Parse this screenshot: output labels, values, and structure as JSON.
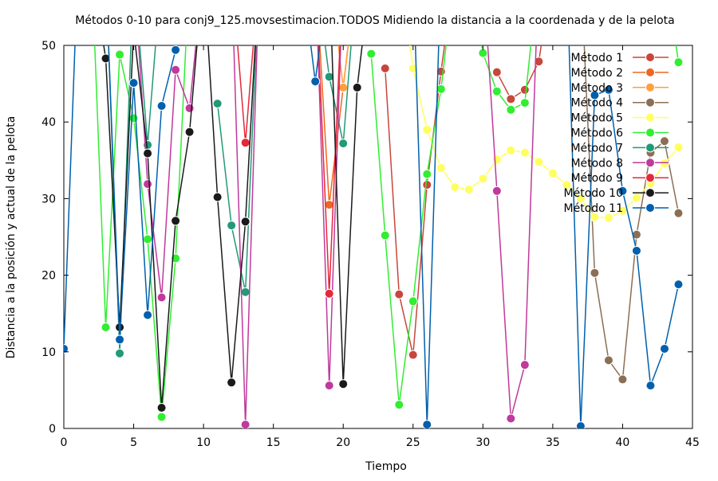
{
  "chart_data": {
    "type": "line",
    "title": "Métodos 0-10 para conj9_125.movsestimacion.TODOS Midiendo la distancia a la coordenada y de la pelota",
    "x_label": "Tiempo",
    "y_label": "Distancia a la posición y actual de la pelota",
    "xlim": [
      0,
      45
    ],
    "ylim": [
      0,
      50
    ],
    "xticks": [
      0,
      5,
      10,
      15,
      20,
      25,
      30,
      35,
      40,
      45
    ],
    "yticks": [
      0,
      10,
      20,
      30,
      40,
      50
    ],
    "legend": "top-right",
    "series": [
      {
        "name": "Método 1",
        "color": "#c8463c",
        "x": [
          23,
          24,
          25,
          26,
          27,
          28,
          29,
          31,
          32,
          33,
          34,
          35
        ],
        "values": [
          47,
          17.5,
          9.6,
          31.8,
          46.6,
          60,
          null,
          46.5,
          43,
          44.2,
          47.9,
          60
        ]
      },
      {
        "name": "Método 2",
        "color": "#ee6622",
        "x": [
          18,
          19,
          20,
          21
        ],
        "values": [
          60,
          29.2,
          44.5,
          60
        ]
      },
      {
        "name": "Método 3",
        "color": "#ff9f3f",
        "x": [
          19,
          20,
          21
        ],
        "values": [
          60,
          44.5,
          60
        ]
      },
      {
        "name": "Método 4",
        "color": "#8b6e54",
        "x": [
          37,
          38,
          39,
          40,
          41,
          42,
          43,
          44
        ],
        "values": [
          60,
          20.3,
          8.9,
          6.4,
          25.3,
          36,
          37.5,
          28.1
        ]
      },
      {
        "name": "Método 5",
        "color": "#ffff60",
        "x": [
          24,
          25,
          26,
          27,
          28,
          29,
          30,
          31,
          32,
          33,
          34,
          35,
          36,
          37,
          38,
          39,
          40,
          41,
          42,
          43,
          44
        ],
        "values": [
          60,
          47,
          39,
          34,
          31.5,
          31.2,
          32.6,
          35.1,
          36.3,
          36,
          34.8,
          33.3,
          31.8,
          30,
          27.6,
          27.5,
          28.4,
          30.1,
          32,
          34.6,
          36.7
        ]
      },
      {
        "name": "Método 6",
        "color": "#30ee30",
        "x": [
          2,
          3,
          4,
          5,
          6,
          7,
          8,
          9,
          21,
          22,
          23,
          24,
          25,
          26,
          27,
          28,
          29,
          30,
          31,
          32,
          33,
          34,
          43,
          44
        ],
        "values": [
          60,
          13.2,
          48.8,
          40.5,
          24.7,
          1.5,
          22.2,
          60,
          null,
          48.9,
          25.2,
          3.1,
          16.6,
          33.2,
          44.3,
          60,
          60,
          49,
          44,
          41.6,
          42.5,
          60,
          60,
          47.8
        ]
      },
      {
        "name": "Método 7",
        "color": "#229977",
        "x": [
          3,
          4,
          5,
          6,
          7,
          10,
          11,
          12,
          13,
          14,
          18,
          19,
          20,
          21
        ],
        "values": [
          60,
          9.8,
          60,
          37,
          60,
          null,
          42.4,
          26.5,
          17.8,
          60,
          60,
          45.9,
          37.2,
          60
        ]
      },
      {
        "name": "Método 8",
        "color": "#c0399c",
        "x": [
          5,
          6,
          7,
          8,
          9,
          10,
          12,
          13,
          14,
          18,
          19,
          20,
          30,
          31,
          32,
          33,
          34
        ],
        "values": [
          60,
          31.9,
          17.1,
          46.8,
          41.8,
          60,
          60,
          0.5,
          60,
          60,
          5.6,
          60,
          60,
          31,
          1.3,
          8.3,
          60
        ]
      },
      {
        "name": "Método 9",
        "color": "#e5283a",
        "x": [
          12,
          13,
          14,
          18,
          19,
          20
        ],
        "values": [
          60,
          37.3,
          60,
          60,
          17.6,
          60
        ]
      },
      {
        "name": "Método 10",
        "color": "#1a1a1a",
        "x": [
          2,
          3,
          4,
          5,
          6,
          7,
          8,
          9,
          10,
          11,
          12,
          13,
          14,
          19,
          20,
          21,
          22
        ],
        "values": [
          60,
          48.3,
          13.2,
          52,
          35.9,
          2.7,
          27.1,
          38.7,
          60,
          30.2,
          6,
          27,
          60,
          60,
          5.8,
          44.5,
          60
        ]
      },
      {
        "name": "Método 11",
        "color": "#0060ad",
        "x": [
          0,
          1,
          3,
          4,
          5,
          6,
          7,
          8,
          9,
          17,
          18,
          19,
          25,
          26,
          27,
          36,
          37,
          38,
          39,
          40,
          41,
          42,
          43,
          44
        ],
        "values": [
          10.4,
          60,
          60,
          11.6,
          45.1,
          14.8,
          42.1,
          49.4,
          60,
          60,
          45.3,
          60,
          60,
          0.5,
          60,
          60,
          0.3,
          43.5,
          44.2,
          31,
          23.2,
          5.6,
          10.4,
          18.8
        ]
      }
    ]
  }
}
